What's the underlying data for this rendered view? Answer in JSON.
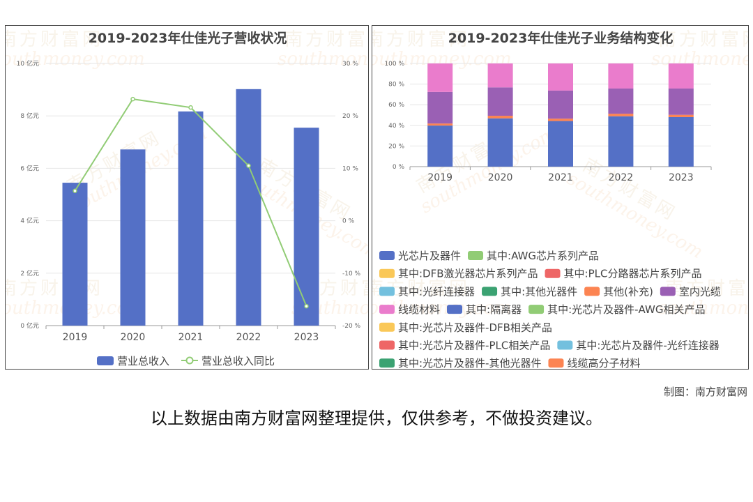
{
  "chart_data": [
    {
      "type": "bar",
      "title": "2019-2023年仕佳光子营收状况",
      "categories": [
        "2019",
        "2020",
        "2021",
        "2022",
        "2023"
      ],
      "series": [
        {
          "name": "营业总收入",
          "type": "bar",
          "axis": "left",
          "color": "#5470c6",
          "values": [
            5.45,
            6.72,
            8.17,
            9.02,
            7.55
          ]
        },
        {
          "name": "营业总收入同比",
          "type": "line",
          "axis": "right",
          "color": "#91cc75",
          "values": [
            5.7,
            23.2,
            21.6,
            10.5,
            -16.3
          ]
        }
      ],
      "left_axis": {
        "min": 0,
        "max": 10,
        "ticks": [
          {
            "v": 0,
            "label": "0 亿元"
          },
          {
            "v": 2,
            "label": "2 亿元"
          },
          {
            "v": 4,
            "label": "4 亿元"
          },
          {
            "v": 6,
            "label": "6 亿元"
          },
          {
            "v": 8,
            "label": "8 亿元"
          },
          {
            "v": 10,
            "label": "10 亿元"
          }
        ]
      },
      "right_axis": {
        "min": -20,
        "max": 30,
        "ticks": [
          {
            "v": -20,
            "label": "-20 %"
          },
          {
            "v": -10,
            "label": "-10 %"
          },
          {
            "v": 0,
            "label": "0 %"
          },
          {
            "v": 10,
            "label": "10 %"
          },
          {
            "v": 20,
            "label": "20 %"
          },
          {
            "v": 30,
            "label": "30 %"
          }
        ]
      },
      "legend_position": "bottom",
      "grid": true
    },
    {
      "type": "bar",
      "stacked": true,
      "percent": true,
      "title": "2019-2023年仕佳光子业务结构变化",
      "categories": [
        "2019",
        "2020",
        "2021",
        "2022",
        "2023"
      ],
      "y_axis": {
        "min": 0,
        "max": 100,
        "ticks": [
          {
            "v": 0,
            "label": "0 %"
          },
          {
            "v": 20,
            "label": "20 %"
          },
          {
            "v": 40,
            "label": "40 %"
          },
          {
            "v": 60,
            "label": "60 %"
          },
          {
            "v": 80,
            "label": "80 %"
          },
          {
            "v": 100,
            "label": "100 %"
          }
        ]
      },
      "series": [
        {
          "name": "光芯片及器件",
          "color": "#5470c6",
          "values": [
            39.8,
            46.8,
            44.2,
            48.8,
            48.0
          ]
        },
        {
          "name": "其中:AWG芯片系列产品",
          "color": "#91cc75",
          "values": [
            0,
            0,
            0,
            0,
            0
          ]
        },
        {
          "name": "其中:DFB激光器芯片系列产品",
          "color": "#fac858",
          "values": [
            0,
            0,
            0,
            0,
            0
          ]
        },
        {
          "name": "其中:PLC分路器芯片系列产品",
          "color": "#ee6666",
          "values": [
            0,
            0,
            0,
            0,
            0
          ]
        },
        {
          "name": "其中:光纤连接器",
          "color": "#73c0de",
          "values": [
            0,
            0,
            0,
            0,
            0
          ]
        },
        {
          "name": "其中:其他光器件",
          "color": "#3ba272",
          "values": [
            0,
            0,
            0,
            0,
            0
          ]
        },
        {
          "name": "其他(补充)",
          "color": "#fc8452",
          "values": [
            2.0,
            2.5,
            2.3,
            2.5,
            2.2
          ]
        },
        {
          "name": "室内光缆",
          "color": "#9a60b4",
          "values": [
            30.6,
            27.5,
            27.2,
            24.4,
            25.5
          ]
        },
        {
          "name": "线缆材料",
          "color": "#ea7ccc",
          "values": [
            27.6,
            23.2,
            26.3,
            24.3,
            24.3
          ]
        },
        {
          "name": "其中:隔离器",
          "color": "#5470c6",
          "values": [
            0,
            0,
            0,
            0,
            0
          ]
        },
        {
          "name": "其中:光芯片及器件-AWG相关产品",
          "color": "#91cc75",
          "values": [
            0,
            0,
            0,
            0,
            0
          ]
        },
        {
          "name": "其中:光芯片及器件-DFB相关产品",
          "color": "#fac858",
          "values": [
            0,
            0,
            0,
            0,
            0
          ]
        },
        {
          "name": "其中:光芯片及器件-PLC相关产品",
          "color": "#ee6666",
          "values": [
            0,
            0,
            0,
            0,
            0
          ]
        },
        {
          "name": "其中:光芯片及器件-光纤连接器",
          "color": "#73c0de",
          "values": [
            0,
            0,
            0,
            0,
            0
          ]
        },
        {
          "name": "其中:光芯片及器件-其他光器件",
          "color": "#3ba272",
          "values": [
            0,
            0,
            0,
            0,
            0
          ]
        },
        {
          "name": "线缆高分子材料",
          "color": "#fc8452",
          "values": [
            0,
            0,
            0,
            0,
            0
          ]
        }
      ],
      "legend_position": "bottom",
      "grid": true
    }
  ],
  "watermark": {
    "cn": "南方财富网",
    "en": "southmoney.com"
  },
  "credit": "制图：南方财富网",
  "disclaimer": "以上数据由南方财富网整理提供，仅供参考，不做投资建议。"
}
